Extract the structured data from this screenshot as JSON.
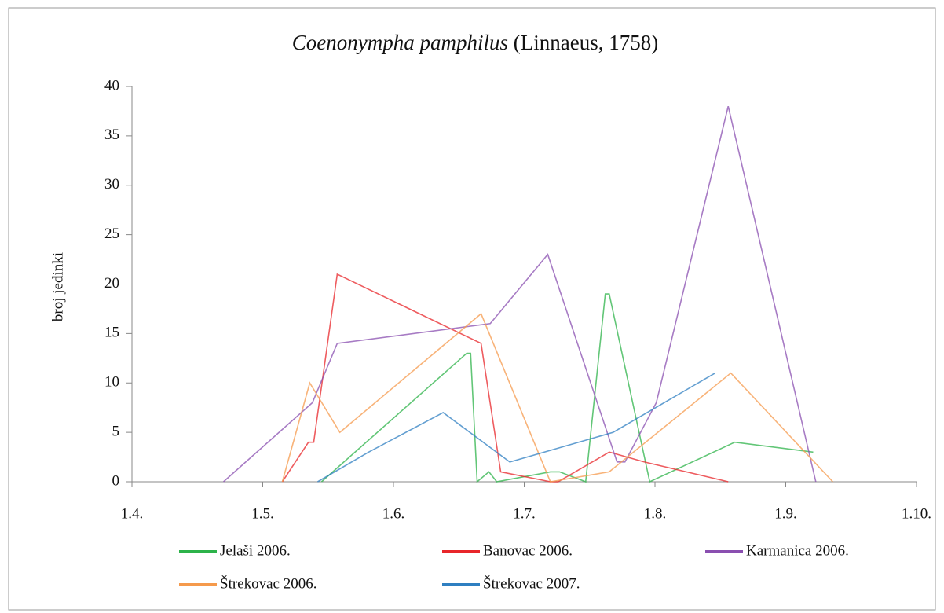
{
  "chart_data": {
    "type": "line",
    "title": {
      "species": "Coenonympha pamphilus",
      "author": "(Linnaeus, 1758)"
    },
    "ylabel": "broj jedinki",
    "xlim": [
      4,
      10
    ],
    "xticks": [
      {
        "value": 4,
        "label": "1.4."
      },
      {
        "value": 5,
        "label": "1.5."
      },
      {
        "value": 6,
        "label": "1.6."
      },
      {
        "value": 7,
        "label": "1.7."
      },
      {
        "value": 8,
        "label": "1.8."
      },
      {
        "value": 9,
        "label": "1.9."
      },
      {
        "value": 10,
        "label": "1.10."
      }
    ],
    "ylim": [
      0,
      40
    ],
    "yticks": [
      0,
      5,
      10,
      15,
      20,
      25,
      30,
      35,
      40
    ],
    "grid": false,
    "legend": "bottom",
    "series": [
      {
        "name": "Jelaši 2006.",
        "color": "#2db34a",
        "x": [
          5.45,
          6.56,
          6.59,
          6.64,
          6.73,
          6.79,
          7.2,
          7.27,
          7.47,
          7.62,
          7.65,
          7.96,
          8.61,
          9.21
        ],
        "values": [
          0,
          13,
          13,
          0,
          1,
          0,
          1,
          1,
          0,
          19,
          19,
          0,
          4,
          3
        ]
      },
      {
        "name": "Banovac 2006.",
        "color": "#e8262a",
        "x": [
          5.15,
          5.35,
          5.39,
          5.57,
          6.67,
          6.82,
          7.2,
          7.26,
          7.65,
          7.92,
          8.56
        ],
        "values": [
          0,
          4,
          4,
          21,
          14,
          1,
          0,
          0,
          3,
          2,
          0
        ]
      },
      {
        "name": "Karmanica 2006.",
        "color": "#8a4fb0",
        "x": [
          4.7,
          5.38,
          5.57,
          6.74,
          7.18,
          7.71,
          7.77,
          8.01,
          8.56,
          9.23
        ],
        "values": [
          0,
          8,
          14,
          16,
          23,
          2,
          2,
          8,
          38,
          0
        ]
      },
      {
        "name": "Štrekovac 2006.",
        "color": "#f59a4c",
        "x": [
          5.15,
          5.36,
          5.59,
          6.67,
          7.2,
          7.65,
          8.58,
          9.36
        ],
        "values": [
          0,
          10,
          5,
          17,
          0,
          1,
          11,
          0
        ]
      },
      {
        "name": "Štrekovac 2007.",
        "color": "#2f7fc1",
        "x": [
          5.42,
          5.81,
          6.38,
          6.89,
          7.68,
          8.46
        ],
        "values": [
          0,
          3,
          7,
          2,
          5,
          11
        ]
      }
    ]
  }
}
